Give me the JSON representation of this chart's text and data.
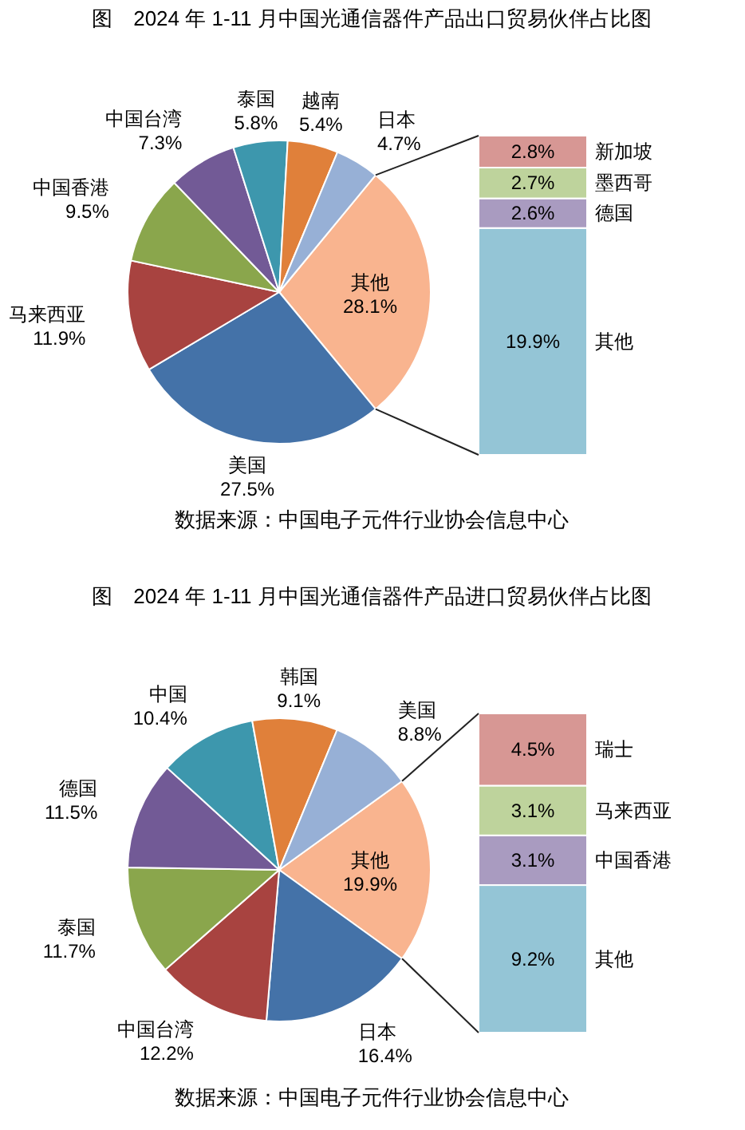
{
  "chart_data": [
    {
      "type": "pie",
      "title": "图　2024 年 1-11 月中国光通信器件产品出口贸易伙伴占比图",
      "categories": [
        "其他",
        "美国",
        "马来西亚",
        "中国香港",
        "中国台湾",
        "泰国",
        "越南",
        "日本"
      ],
      "values": [
        28.1,
        27.5,
        11.9,
        9.5,
        7.3,
        5.8,
        5.4,
        4.7
      ],
      "colors": [
        "#f9b48f",
        "#4472a8",
        "#a84340",
        "#8aa64c",
        "#725a96",
        "#3d97ad",
        "#e0803a",
        "#97b0d6"
      ],
      "value_labels": [
        "28.1%",
        "27.5%",
        "11.9%",
        "9.5%",
        "7.3%",
        "5.8%",
        "5.4%",
        "4.7%"
      ],
      "annotations": [
        "数据来源：中国电子元件行业协会信息中心"
      ]
    },
    {
      "type": "bar",
      "stacked": true,
      "categories": [
        null
      ],
      "series": [
        {
          "name": "其他",
          "color": "#94c5d6",
          "values": [
            19.9
          ],
          "value_labels": [
            "19.9%"
          ]
        },
        {
          "name": "德国",
          "color": "#a99bc0",
          "values": [
            2.6
          ],
          "value_labels": [
            "2.6%"
          ]
        },
        {
          "name": "墨西哥",
          "color": "#bed39c",
          "values": [
            2.7
          ],
          "value_labels": [
            "2.7%"
          ]
        },
        {
          "name": "新加坡",
          "color": "#d79794",
          "values": [
            2.8
          ],
          "value_labels": [
            "2.8%"
          ]
        }
      ]
    },
    {
      "type": "pie",
      "title": "图　2024 年 1-11 月中国光通信器件产品进口贸易伙伴占比图",
      "categories": [
        "其他",
        "日本",
        "中国台湾",
        "泰国",
        "德国",
        "中国",
        "韩国",
        "美国"
      ],
      "values": [
        19.9,
        16.4,
        12.2,
        11.7,
        11.5,
        10.4,
        9.1,
        8.8
      ],
      "colors": [
        "#f9b48f",
        "#4472a8",
        "#a84340",
        "#8aa64c",
        "#725a96",
        "#3d97ad",
        "#e0803a",
        "#97b0d6"
      ],
      "value_labels": [
        "19.9%",
        "16.4%",
        "12.2%",
        "11.7%",
        "11.5%",
        "10.4%",
        "9.1%",
        "8.8%"
      ],
      "annotations": [
        "数据来源：中国电子元件行业协会信息中心"
      ]
    },
    {
      "type": "bar",
      "stacked": true,
      "categories": [
        null
      ],
      "series": [
        {
          "name": "其他",
          "color": "#94c5d6",
          "values": [
            9.2
          ],
          "value_labels": [
            "9.2%"
          ]
        },
        {
          "name": "中国香港",
          "color": "#a99bc0",
          "values": [
            3.1
          ],
          "value_labels": [
            "3.1%"
          ]
        },
        {
          "name": "马来西亚",
          "color": "#bed39c",
          "values": [
            3.1
          ],
          "value_labels": [
            "3.1%"
          ]
        },
        {
          "name": "瑞士",
          "color": "#d79794",
          "values": [
            4.5
          ],
          "value_labels": [
            "4.5%"
          ]
        }
      ]
    }
  ]
}
